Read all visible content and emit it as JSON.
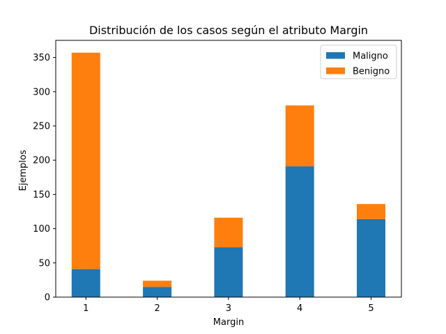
{
  "chart_data": {
    "type": "bar",
    "stacked": true,
    "title": "Distribución de los casos según el atributo Margin",
    "xlabel": "Margin",
    "ylabel": "Ejemplos",
    "categories": [
      "1",
      "2",
      "3",
      "4",
      "5"
    ],
    "series": [
      {
        "name": "Maligno",
        "color": "#1f77b4",
        "values": [
          41,
          15,
          73,
          191,
          114
        ]
      },
      {
        "name": "Benigno",
        "color": "#ff7f0e",
        "values": [
          316,
          9,
          43,
          89,
          22
        ]
      }
    ],
    "ylim": [
      0,
      375
    ],
    "yticks": [
      0,
      50,
      100,
      150,
      200,
      250,
      300,
      350
    ],
    "legend": {
      "position": "top-right"
    },
    "grid": false
  }
}
